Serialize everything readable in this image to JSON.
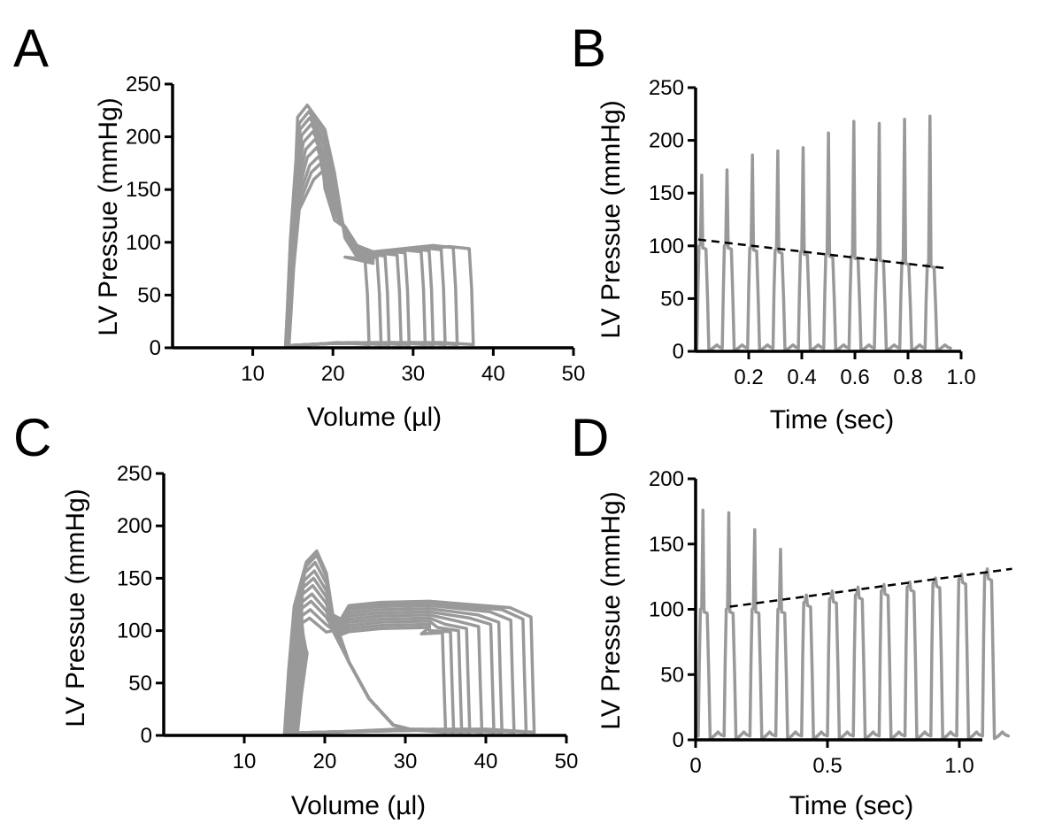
{
  "colors": {
    "trace": "#999999",
    "axis": "#000000",
    "trend": "#000000"
  },
  "chart_data": [
    {
      "id": "A",
      "panel_label": "A",
      "type": "line",
      "xlabel": "Volume (µl)",
      "ylabel": "LV Pressue (mmHg)",
      "xlim": [
        0,
        50
      ],
      "ylim": [
        0,
        250
      ],
      "xticks": [
        10,
        20,
        30,
        40,
        50
      ],
      "xtick_labels": [
        "10",
        "20",
        "30",
        "40",
        "50"
      ],
      "yticks": [
        0,
        50,
        100,
        150,
        200,
        250
      ],
      "ytick_labels": [
        "0",
        "50",
        "100",
        "150",
        "200",
        "250"
      ],
      "loops": [
        {
          "ved": 37.5,
          "esv": 14.5,
          "edp": 94,
          "pk": 168,
          "pkv": 18.8
        },
        {
          "ved": 35.5,
          "esv": 14.5,
          "edp": 95,
          "pk": 175,
          "pkv": 18.5
        },
        {
          "ved": 34.0,
          "esv": 14.4,
          "edp": 93,
          "pk": 182,
          "pkv": 18.3
        },
        {
          "ved": 32.5,
          "esv": 14.4,
          "edp": 92,
          "pk": 190,
          "pkv": 18.0
        },
        {
          "ved": 31.5,
          "esv": 14.3,
          "edp": 91,
          "pk": 198,
          "pkv": 17.8
        },
        {
          "ved": 29.5,
          "esv": 14.3,
          "edp": 90,
          "pk": 205,
          "pkv": 17.5
        },
        {
          "ved": 28.5,
          "esv": 14.2,
          "edp": 88,
          "pk": 212,
          "pkv": 17.3
        },
        {
          "ved": 27.0,
          "esv": 14.2,
          "edp": 87,
          "pk": 218,
          "pkv": 17.1
        },
        {
          "ved": 26.0,
          "esv": 14.1,
          "edp": 86,
          "pk": 224,
          "pkv": 17.0
        },
        {
          "ved": 24.5,
          "esv": 14.1,
          "edp": 84,
          "pk": 230,
          "pkv": 16.8
        }
      ]
    },
    {
      "id": "B",
      "panel_label": "B",
      "type": "line",
      "xlabel": "Time (sec)",
      "ylabel": "LV Pressue (mmHg)",
      "xlim": [
        0,
        1.0
      ],
      "ylim": [
        0,
        250
      ],
      "xticks": [
        0.2,
        0.4,
        0.6,
        0.8,
        1.0
      ],
      "xtick_labels": [
        "0.2",
        "0.4",
        "0.6",
        "0.8",
        "1.0"
      ],
      "yticks": [
        0,
        50,
        100,
        150,
        200,
        250
      ],
      "ytick_labels": [
        "0",
        "50",
        "100",
        "150",
        "200",
        "250"
      ],
      "beat_period": 0.0955,
      "first_beat": 0.005,
      "peaks": [
        167,
        172,
        186,
        190,
        193,
        207,
        218,
        216,
        220,
        223
      ],
      "shoulders": [
        100,
        100,
        98,
        96,
        94,
        92,
        90,
        88,
        85,
        82
      ],
      "trend": {
        "x": [
          0.01,
          0.935
        ],
        "y": [
          106,
          79
        ]
      }
    },
    {
      "id": "C",
      "panel_label": "C",
      "type": "line",
      "xlabel": "Volume (µl)",
      "ylabel": "LV Pressue (mmHg)",
      "xlim": [
        0,
        50
      ],
      "ylim": [
        0,
        250
      ],
      "xticks": [
        10,
        20,
        30,
        40,
        50
      ],
      "xtick_labels": [
        "10",
        "20",
        "30",
        "40",
        "50"
      ],
      "yticks": [
        0,
        50,
        100,
        150,
        200,
        250
      ],
      "ytick_labels": [
        "0",
        "50",
        "100",
        "150",
        "200",
        "250"
      ],
      "loops": [
        {
          "ved": 46.0,
          "esv": 15.0,
          "edp": 113,
          "pk": 176,
          "pkv": 19.0,
          "plat": 128
        },
        {
          "ved": 45.0,
          "esv": 15.2,
          "edp": 111,
          "pk": 172,
          "pkv": 19.0,
          "plat": 126
        },
        {
          "ved": 43.5,
          "esv": 15.3,
          "edp": 110,
          "pk": 165,
          "pkv": 18.8,
          "plat": 124
        },
        {
          "ved": 42.0,
          "esv": 15.5,
          "edp": 108,
          "pk": 157,
          "pkv": 18.7,
          "plat": 121
        },
        {
          "ved": 41.0,
          "esv": 15.6,
          "edp": 106,
          "pk": 150,
          "pkv": 18.6,
          "plat": 118
        },
        {
          "ved": 39.5,
          "esv": 15.8,
          "edp": 104,
          "pk": 143,
          "pkv": 18.5,
          "plat": 115
        },
        {
          "ved": 38.0,
          "esv": 16.0,
          "edp": 102,
          "pk": 135,
          "pkv": 18.4,
          "plat": 112
        },
        {
          "ved": 37.0,
          "esv": 16.2,
          "edp": 100,
          "pk": 128,
          "pkv": 18.3,
          "plat": 109
        },
        {
          "ved": 36.0,
          "esv": 16.4,
          "edp": 99,
          "pk": 120,
          "pkv": 18.2,
          "plat": 106
        },
        {
          "ved": 35.0,
          "esv": 16.6,
          "edp": 98,
          "pk": 112,
          "pkv": 18.1,
          "plat": 103
        }
      ]
    },
    {
      "id": "D",
      "panel_label": "D",
      "type": "line",
      "xlabel": "Time (sec)",
      "ylabel": "LV Pressue (mmHg)",
      "xlim": [
        0,
        1.25
      ],
      "ylim": [
        0,
        200
      ],
      "xticks": [
        0,
        0.5,
        1.0
      ],
      "xtick_labels": [
        "0",
        "0.5",
        "1.0"
      ],
      "yticks": [
        0,
        50,
        100,
        150,
        200
      ],
      "ytick_labels": [
        "0",
        "50",
        "100",
        "150",
        "200"
      ],
      "beat_period": 0.098,
      "first_beat": 0.01,
      "peaks": [
        176,
        174,
        161,
        146,
        111,
        114,
        117,
        119,
        121,
        124,
        127,
        131
      ],
      "shoulders": [
        100,
        100,
        100,
        100,
        105,
        108,
        111,
        114,
        117,
        120,
        123,
        126
      ],
      "trend": {
        "x": [
          0.13,
          1.2
        ],
        "y": [
          102,
          131
        ]
      }
    }
  ]
}
